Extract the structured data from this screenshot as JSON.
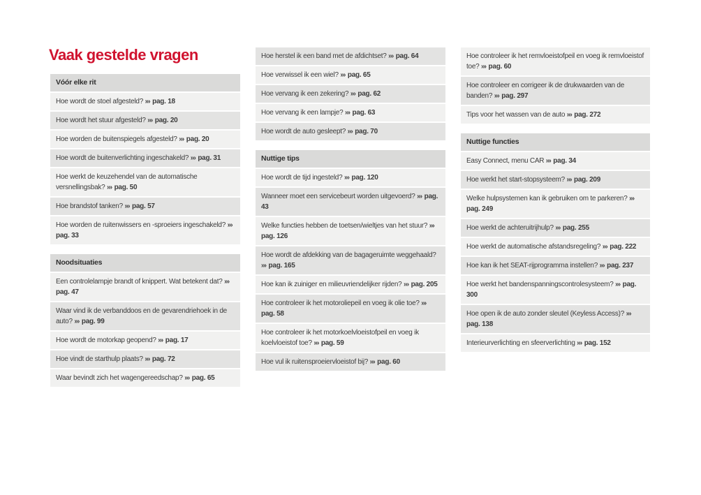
{
  "title": "Vaak gestelde vragen",
  "ref_arrow": "›››",
  "colors": {
    "accent_red": "#d0132f",
    "row_light": "#f1f1f0",
    "row_dark": "#e3e3e2",
    "header_bg": "#dadad9",
    "text": "#3c3c3c"
  },
  "columns": [
    {
      "blocks": [
        {
          "type": "header",
          "label": "Vóór elke rit"
        },
        {
          "type": "item",
          "shade": "light",
          "q": "Hoe wordt de stoel afgesteld?",
          "page": "pag. 18"
        },
        {
          "type": "item",
          "shade": "dark",
          "q": "Hoe wordt het stuur afgesteld?",
          "page": "pag. 20"
        },
        {
          "type": "item",
          "shade": "light",
          "q": "Hoe worden de buitenspiegels afgesteld?",
          "page": "pag. 20"
        },
        {
          "type": "item",
          "shade": "dark",
          "q": "Hoe wordt de buitenverlichting ingeschakeld?",
          "page": "pag. 31"
        },
        {
          "type": "item",
          "shade": "light",
          "q": "Hoe werkt de keuzehendel van de automatische versnellingsbak?",
          "page": "pag. 50"
        },
        {
          "type": "item",
          "shade": "dark",
          "q": "Hoe brandstof tanken?",
          "page": "pag. 57"
        },
        {
          "type": "item",
          "shade": "light",
          "q": "Hoe worden de ruitenwissers en -sproeiers ingeschakeld?",
          "page": "pag. 33"
        },
        {
          "type": "header",
          "label": "Noodsituaties"
        },
        {
          "type": "item",
          "shade": "light",
          "q": "Een controlelampje brandt of knippert. Wat betekent dat?",
          "page": "pag. 47"
        },
        {
          "type": "item",
          "shade": "dark",
          "q": "Waar vind ik de verbanddoos en de gevarendriehoek in de auto?",
          "page": "pag. 99"
        },
        {
          "type": "item",
          "shade": "light",
          "q": "Hoe wordt de motorkap geopend?",
          "page": "pag. 17"
        },
        {
          "type": "item",
          "shade": "dark",
          "q": "Hoe vindt de starthulp plaats?",
          "page": "pag. 72"
        },
        {
          "type": "item",
          "shade": "light",
          "q": "Waar bevindt zich het wagengereedschap?",
          "page": "pag. 65"
        }
      ]
    },
    {
      "blocks": [
        {
          "type": "item",
          "shade": "dark",
          "q": "Hoe herstel ik een band met de afdichtset?",
          "page": "pag. 64"
        },
        {
          "type": "item",
          "shade": "light",
          "q": "Hoe verwissel ik een wiel?",
          "page": "pag. 65"
        },
        {
          "type": "item",
          "shade": "dark",
          "q": "Hoe vervang ik een zekering?",
          "page": "pag. 62"
        },
        {
          "type": "item",
          "shade": "light",
          "q": "Hoe vervang ik een lampje?",
          "page": "pag. 63"
        },
        {
          "type": "item",
          "shade": "dark",
          "q": "Hoe wordt de auto gesleept?",
          "page": "pag. 70"
        },
        {
          "type": "header",
          "label": "Nuttige tips"
        },
        {
          "type": "item",
          "shade": "light",
          "q": "Hoe wordt de tijd ingesteld?",
          "page": "pag. 120"
        },
        {
          "type": "item",
          "shade": "dark",
          "q": "Wanneer moet een servicebeurt worden uitgevoerd?",
          "page": "pag. 43"
        },
        {
          "type": "item",
          "shade": "light",
          "q": "Welke functies hebben de toetsen/wieltjes van het stuur?",
          "page": "pag. 126"
        },
        {
          "type": "item",
          "shade": "dark",
          "q": "Hoe wordt de afdekking van de bagageruimte weggehaald?",
          "page": "pag. 165"
        },
        {
          "type": "item",
          "shade": "light",
          "q": "Hoe kan ik zuiniger en milieuvriendelijker rijden?",
          "page": "pag. 205"
        },
        {
          "type": "item",
          "shade": "dark",
          "q": "Hoe controleer ik het motoroliepeil en voeg ik olie toe?",
          "page": "pag. 58"
        },
        {
          "type": "item",
          "shade": "light",
          "q": "Hoe controleer ik het motorkoelvloeistofpeil en voeg ik koelvloeistof toe?",
          "page": "pag. 59"
        },
        {
          "type": "item",
          "shade": "dark",
          "q": "Hoe vul ik ruitensproeiervloeistof bij?",
          "page": "pag. 60"
        }
      ]
    },
    {
      "blocks": [
        {
          "type": "item",
          "shade": "light",
          "q": "Hoe controleer ik het remvloeistofpeil en voeg ik remvloeistof toe?",
          "page": "pag. 60"
        },
        {
          "type": "item",
          "shade": "dark",
          "q": "Hoe controleer en corrigeer ik de drukwaarden van de banden?",
          "page": "pag. 297"
        },
        {
          "type": "item",
          "shade": "light",
          "q": "Tips voor het wassen van de auto",
          "page": "pag. 272"
        },
        {
          "type": "header",
          "label": "Nuttige functies"
        },
        {
          "type": "item",
          "shade": "light",
          "q": "Easy Connect, menu CAR",
          "page": "pag. 34"
        },
        {
          "type": "item",
          "shade": "dark",
          "q": "Hoe werkt het start-stopsysteem?",
          "page": "pag. 209"
        },
        {
          "type": "item",
          "shade": "light",
          "q": "Welke hulpsystemen kan ik gebruiken om te parkeren?",
          "page": "pag. 249"
        },
        {
          "type": "item",
          "shade": "dark",
          "q": "Hoe werkt de achteruitrijhulp?",
          "page": "pag. 255"
        },
        {
          "type": "item",
          "shade": "light",
          "q": "Hoe werkt de automatische afstandsregeling?",
          "page": "pag. 222"
        },
        {
          "type": "item",
          "shade": "dark",
          "q": "Hoe kan ik het SEAT-rijprogramma instellen?",
          "page": "pag. 237"
        },
        {
          "type": "item",
          "shade": "light",
          "q": "Hoe werkt het bandenspanningscontrolesysteem?",
          "page": "pag. 300"
        },
        {
          "type": "item",
          "shade": "dark",
          "q": "Hoe open ik de auto zonder sleutel (Keyless Access)?",
          "page": "pag. 138"
        },
        {
          "type": "item",
          "shade": "light",
          "q": "Interieurverlichting en sfeerverlichting",
          "page": "pag. 152"
        }
      ]
    }
  ]
}
